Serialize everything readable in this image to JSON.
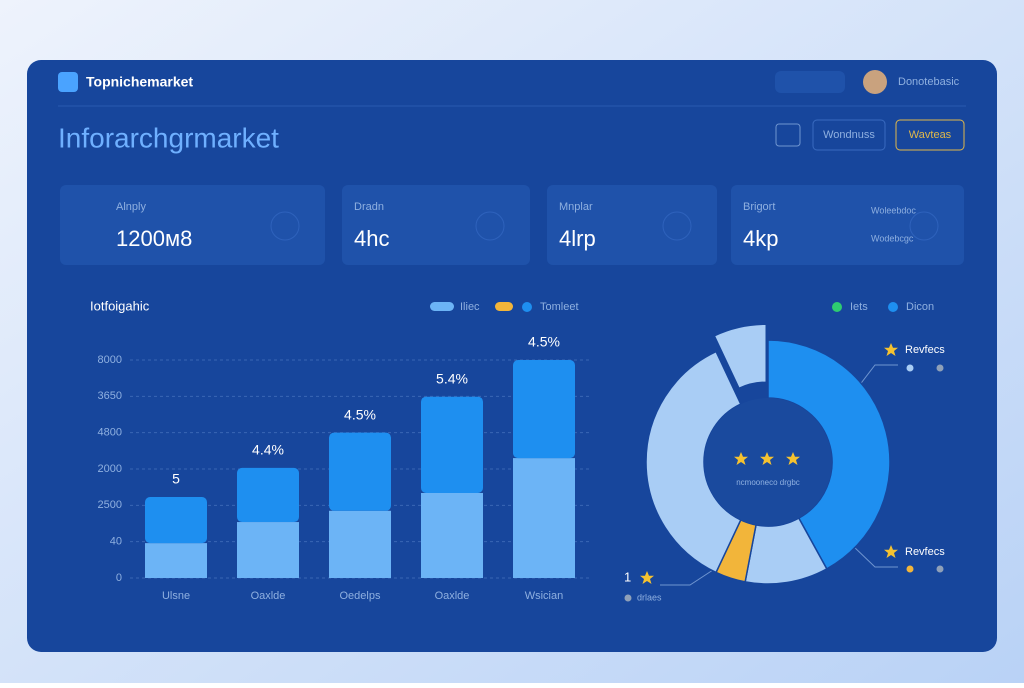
{
  "header": {
    "brand": "Topnichemarket",
    "user": "Donotebasic"
  },
  "title": "Inforarchgrmarket",
  "buttons": [
    "Wondnuss",
    "Wavteas"
  ],
  "cards": [
    {
      "label": "Alnply",
      "value": "1200м8"
    },
    {
      "label": "Dradn",
      "value": "4hc"
    },
    {
      "label": "Mnplar",
      "value": "4lrp"
    },
    {
      "label": "Brigort",
      "value": "4kp",
      "links": [
        "Woleebdoc",
        "Wodebcgc"
      ]
    }
  ],
  "chart_data": [
    {
      "type": "bar",
      "title": "Iotfoigahic",
      "stacked": true,
      "categories": [
        "Ulsne",
        "Oaxlde",
        "Oedelps",
        "Oaxlde",
        "Wsician"
      ],
      "series": [
        {
          "name": "Iliec",
          "color": "#6cb4f6",
          "values": [
            0.96,
            1.54,
            1.85,
            2.34,
            3.3
          ]
        },
        {
          "name": "Tomleet",
          "color": "#1e8ff0",
          "values": [
            1.27,
            1.49,
            2.15,
            2.65,
            2.7
          ]
        }
      ],
      "annotations": [
        "5",
        "4.4%",
        "4.5%",
        "5.4%",
        "4.5%"
      ],
      "ylim": [
        0,
        6
      ],
      "yticks": [
        0,
        {
          "value": 1,
          "label": "40"
        },
        {
          "value": 2,
          "label": "2500"
        },
        {
          "value": 3,
          "label": "2000"
        },
        {
          "value": 4,
          "label": "4800"
        },
        {
          "value": 5,
          "label": "3650"
        },
        {
          "value": 6,
          "label": "8000"
        }
      ],
      "grid": true
    },
    {
      "type": "pie",
      "donut": true,
      "values": [
        42,
        11,
        4,
        36,
        7
      ],
      "colors": [
        "#1e8ff0",
        "#a9cdf5",
        "#f2b53a",
        "#a9cdf5",
        "#a9cdf5"
      ],
      "legend": [
        {
          "name": "Iets",
          "color": "#2ecc71"
        },
        {
          "name": "Dicon",
          "color": "#1e8ff0"
        }
      ],
      "center_label": "ncmooneco drgbc",
      "callouts": [
        "Revfecs",
        "Revfecs",
        "1",
        "drlaes"
      ]
    }
  ]
}
